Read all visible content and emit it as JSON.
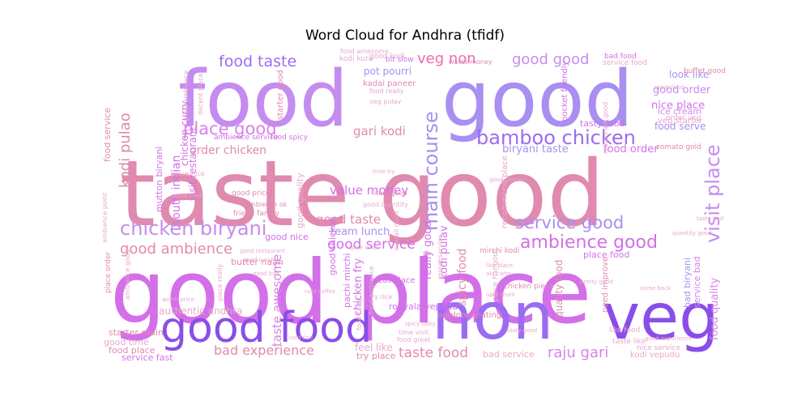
{
  "chart_data": {
    "type": "wordcloud",
    "title": "Word Cloud for Andhra (tfidf)",
    "colors": [
      "#e08ab0",
      "#d36fe8",
      "#c48cf0",
      "#a98ff0",
      "#8a4ee8",
      "#9b6cf2",
      "#d783e6",
      "#e7a8ce",
      "#f06aaa"
    ],
    "words": [
      {
        "text": "taste good",
        "weight": 100,
        "color": "#e08ab0"
      },
      {
        "text": "good place",
        "weight": 95,
        "color": "#d36fe8"
      },
      {
        "text": "food",
        "weight": 80,
        "color": "#c48cf0"
      },
      {
        "text": "good",
        "weight": 80,
        "color": "#a98ff0"
      },
      {
        "text": "non",
        "weight": 58,
        "color": "#9b6cf2"
      },
      {
        "text": "veg",
        "weight": 58,
        "color": "#8a4ee8"
      },
      {
        "text": "good food",
        "weight": 38,
        "color": "#8a4ee8"
      },
      {
        "text": "chicken biryani",
        "weight": 20,
        "color": "#c48cf0"
      },
      {
        "text": "bamboo chicken",
        "weight": 20,
        "color": "#9b6cf2"
      },
      {
        "text": "visit place",
        "weight": 20,
        "color": "#c48cf0"
      },
      {
        "text": "main course",
        "weight": 20,
        "color": "#a98ff0"
      },
      {
        "text": "ambience good",
        "weight": 18,
        "color": "#d36fe8"
      },
      {
        "text": "service good",
        "weight": 18,
        "color": "#a98ff0"
      },
      {
        "text": "place good",
        "weight": 18,
        "color": "#d783e6"
      },
      {
        "text": "food taste",
        "weight": 17,
        "color": "#9b6cf2"
      },
      {
        "text": "good good",
        "weight": 16,
        "color": "#c48cf0"
      },
      {
        "text": "veg non",
        "weight": 16,
        "color": "#f06aaa"
      },
      {
        "text": "good ambience",
        "weight": 15,
        "color": "#e08ab0"
      },
      {
        "text": "good service",
        "weight": 14,
        "color": "#d36fe8"
      },
      {
        "text": "raju gari",
        "weight": 15,
        "color": "#d783e6"
      },
      {
        "text": "taste food",
        "weight": 13,
        "color": "#e08ab0"
      },
      {
        "text": "bad experience",
        "weight": 13,
        "color": "#e08ab0"
      },
      {
        "text": "kodi pulao",
        "weight": 14,
        "color": "#e08ab0"
      },
      {
        "text": "taste awesome",
        "weight": 12,
        "color": "#d783e6"
      },
      {
        "text": "good taste",
        "weight": 12,
        "color": "#e08ab0"
      },
      {
        "text": "value money",
        "weight": 12,
        "color": "#d36fe8"
      },
      {
        "text": "gari kodi",
        "weight": 12,
        "color": "#e08ab0"
      },
      {
        "text": "order chicken",
        "weight": 11,
        "color": "#e08ab0"
      },
      {
        "text": "biryani taste",
        "weight": 11,
        "color": "#a98ff0"
      },
      {
        "text": "food order",
        "weight": 11,
        "color": "#d36fe8"
      },
      {
        "text": "nice place",
        "weight": 11,
        "color": "#d36fe8"
      },
      {
        "text": "good order",
        "weight": 10,
        "color": "#c48cf0"
      },
      {
        "text": "south indian",
        "weight": 11,
        "color": "#d36fe8"
      },
      {
        "text": "spicy food",
        "weight": 11,
        "color": "#e08ab0"
      },
      {
        "text": "kodi pulav",
        "weight": 10,
        "color": "#d36fe8"
      },
      {
        "text": "really good",
        "weight": 10,
        "color": "#d36fe8"
      },
      {
        "text": "food quality",
        "weight": 10,
        "color": "#d783e6"
      },
      {
        "text": "quality food",
        "weight": 9,
        "color": "#e08ab0"
      },
      {
        "text": "pot pourri",
        "weight": 9,
        "color": "#a98ff0"
      },
      {
        "text": "look like",
        "weight": 8,
        "color": "#a98ff0"
      },
      {
        "text": "food serve",
        "weight": 8,
        "color": "#a98ff0"
      },
      {
        "text": "team lunch",
        "weight": 9,
        "color": "#a98ff0"
      },
      {
        "text": "chicken fry",
        "weight": 8,
        "color": "#d36fe8"
      },
      {
        "text": "authentic andhra",
        "weight": 8,
        "color": "#e7a8ce"
      },
      {
        "text": "good time",
        "weight": 8,
        "color": "#e7a8ce"
      },
      {
        "text": "feel like",
        "weight": 8,
        "color": "#e7a8ce"
      },
      {
        "text": "tasty food",
        "weight": 7,
        "color": "#d36fe8"
      },
      {
        "text": "ice cream",
        "weight": 7,
        "color": "#c48cf0"
      },
      {
        "text": "visit restaurant",
        "weight": 7,
        "color": "#d36fe8"
      },
      {
        "text": "chicken curry",
        "weight": 7,
        "color": "#d36fe8"
      },
      {
        "text": "mutton biryani",
        "weight": 7,
        "color": "#d36fe8"
      },
      {
        "text": "food service",
        "weight": 7,
        "color": "#e08ab0"
      },
      {
        "text": "good quality",
        "weight": 7,
        "color": "#e7a8ce"
      },
      {
        "text": "good nice",
        "weight": 7,
        "color": "#d36fe8"
      },
      {
        "text": "service bad",
        "weight": 7,
        "color": "#d783e6"
      },
      {
        "text": "bad biryani",
        "weight": 7,
        "color": "#a98ff0"
      },
      {
        "text": "place food",
        "weight": 7,
        "color": "#d36fe8"
      },
      {
        "text": "butter naan",
        "weight": 6,
        "color": "#e08ab0"
      },
      {
        "text": "good chicken",
        "weight": 6,
        "color": "#d36fe8"
      },
      {
        "text": "pachi mirchi",
        "weight": 6,
        "color": "#d36fe8"
      },
      {
        "text": "royyala vepudu",
        "weight": 6,
        "color": "#d36fe8"
      },
      {
        "text": "service fast",
        "weight": 6,
        "color": "#d36fe8"
      },
      {
        "text": "food place",
        "weight": 6,
        "color": "#e08ab0"
      },
      {
        "text": "starter main",
        "weight": 6,
        "color": "#e08ab0"
      },
      {
        "text": "try place",
        "weight": 6,
        "color": "#e08ab0"
      },
      {
        "text": "bad service",
        "weight": 6,
        "color": "#e7a8ce"
      },
      {
        "text": "kodi vepudu",
        "weight": 5,
        "color": "#e7a8ce"
      },
      {
        "text": "nice service",
        "weight": 5,
        "color": "#e7a8ce"
      },
      {
        "text": "taste like",
        "weight": 5,
        "color": "#e7a8ce"
      },
      {
        "text": "like food",
        "weight": 5,
        "color": "#e7a8ce"
      },
      {
        "text": "need improve",
        "weight": 5,
        "color": "#e08ab0"
      },
      {
        "text": "outdoor seating",
        "weight": 5,
        "color": "#e08ab0"
      },
      {
        "text": "recommend place",
        "weight": 5,
        "color": "#e7a8ce"
      },
      {
        "text": "place hangout",
        "weight": 5,
        "color": "#e7a8ce"
      },
      {
        "text": "veg starter",
        "weight": 6,
        "color": "#e7a8ce"
      },
      {
        "text": "order veg",
        "weight": 5,
        "color": "#e7a8ce"
      },
      {
        "text": "buffet good",
        "weight": 5,
        "color": "#e08ab0"
      },
      {
        "text": "bad food",
        "weight": 5,
        "color": "#d36fe8"
      },
      {
        "text": "service food",
        "weight": 5,
        "color": "#e7a8ce"
      },
      {
        "text": "zomato gold",
        "weight": 4,
        "color": "#e08ab0"
      },
      {
        "text": "good kodi",
        "weight": 5,
        "color": "#e7a8ce"
      },
      {
        "text": "kodi kura",
        "weight": 4,
        "color": "#e7a8ce"
      },
      {
        "text": "food amesome",
        "weight": 4,
        "color": "#e7a8ce"
      },
      {
        "text": "bit slow",
        "weight": 5,
        "color": "#d36fe8"
      },
      {
        "text": "waste money",
        "weight": 4,
        "color": "#e08ab0"
      },
      {
        "text": "kadai paneer",
        "weight": 5,
        "color": "#e08ab0"
      },
      {
        "text": "pocket friendly",
        "weight": 5,
        "color": "#d36fe8"
      },
      {
        "text": "starter good",
        "weight": 5,
        "color": "#e08ab0"
      },
      {
        "text": "food spicy",
        "weight": 5,
        "color": "#d36fe8"
      },
      {
        "text": "ambience service",
        "weight": 5,
        "color": "#d36fe8"
      },
      {
        "text": "good price",
        "weight": 5,
        "color": "#e08ab0"
      },
      {
        "text": "friend family",
        "weight": 5,
        "color": "#e08ab0"
      },
      {
        "text": "ambience ok",
        "weight": 5,
        "color": "#e08ab0"
      },
      {
        "text": "place order",
        "weight": 5,
        "color": "#e08ab0"
      },
      {
        "text": "item good",
        "weight": 4,
        "color": "#e08ab0"
      },
      {
        "text": "overall good",
        "weight": 4,
        "color": "#e7a8ce"
      },
      {
        "text": "great place",
        "weight": 5,
        "color": "#d36fe8"
      },
      {
        "text": "service slow",
        "weight": 5,
        "color": "#d36fe8"
      },
      {
        "text": "chicken piece",
        "weight": 4,
        "color": "#e08ab0"
      },
      {
        "text": "mirchi kodi",
        "weight": 4,
        "color": "#e08ab0"
      },
      {
        "text": "restaurant good",
        "weight": 4,
        "color": "#e7a8ce"
      },
      {
        "text": "food really",
        "weight": 4,
        "color": "#e7a8ce"
      },
      {
        "text": "veg pulav",
        "weight": 4,
        "color": "#e7a8ce"
      },
      {
        "text": "fry rice",
        "weight": 4,
        "color": "#e7a8ce"
      },
      {
        "text": "ambience point",
        "weight": 4,
        "color": "#e7a8ce"
      },
      {
        "text": "ambiance good",
        "weight": 4,
        "color": "#e7a8ce"
      },
      {
        "text": "great ambience",
        "weight": 4,
        "color": "#e7a8ce"
      },
      {
        "text": "decent place",
        "weight": 4,
        "color": "#e7a8ce"
      },
      {
        "text": "place nice",
        "weight": 4,
        "color": "#e7a8ce"
      },
      {
        "text": "serve food",
        "weight": 3,
        "color": "#e7a8ce"
      },
      {
        "text": "food ambience",
        "weight": 4,
        "color": "#e7a8ce"
      },
      {
        "text": "food tasty",
        "weight": 4,
        "color": "#e7a8ce"
      },
      {
        "text": "food great",
        "weight": 4,
        "color": "#e7a8ce"
      },
      {
        "text": "time visit",
        "weight": 4,
        "color": "#e7a8ce"
      },
      {
        "text": "good quantity",
        "weight": 3,
        "color": "#e7a8ce"
      },
      {
        "text": "place really",
        "weight": 3,
        "color": "#e7a8ce"
      },
      {
        "text": "great service",
        "weight": 3,
        "color": "#e7a8ce"
      },
      {
        "text": "good lunch",
        "weight": 3,
        "color": "#e7a8ce"
      },
      {
        "text": "good bad",
        "weight": 3,
        "color": "#e7a8ce"
      },
      {
        "text": "like place",
        "weight": 3,
        "color": "#e7a8ce"
      },
      {
        "text": "curd rice",
        "weight": 3,
        "color": "#e7a8ce"
      },
      {
        "text": "good restaurant",
        "weight": 3,
        "color": "#e7a8ce"
      },
      {
        "text": "tasty good",
        "weight": 3,
        "color": "#e7a8ce"
      },
      {
        "text": "spicy tasty",
        "weight": 3,
        "color": "#e7a8ce"
      },
      {
        "text": "cold coffee",
        "weight": 3,
        "color": "#e7a8ce"
      },
      {
        "text": "ala carte",
        "weight": 3,
        "color": "#e7a8ce"
      },
      {
        "text": "quantity good",
        "weight": 3,
        "color": "#e7a8ce"
      },
      {
        "text": "taste bad",
        "weight": 3,
        "color": "#e7a8ce"
      },
      {
        "text": "great food",
        "weight": 3,
        "color": "#e7a8ce"
      },
      {
        "text": "worth price",
        "weight": 3,
        "color": "#e7a8ce"
      },
      {
        "text": "pretty good",
        "weight": 3,
        "color": "#e7a8ce"
      },
      {
        "text": "spice level",
        "weight": 3,
        "color": "#e7a8ce"
      },
      {
        "text": "time try",
        "weight": 3,
        "color": "#e7a8ce"
      },
      {
        "text": "good option",
        "weight": 3,
        "color": "#e7a8ce"
      },
      {
        "text": "come back",
        "weight": 3,
        "color": "#e7a8ce"
      },
      {
        "text": "upto mark",
        "weight": 3,
        "color": "#e7a8ce"
      },
      {
        "text": "good experience",
        "weight": 3,
        "color": "#e7a8ce"
      }
    ]
  }
}
